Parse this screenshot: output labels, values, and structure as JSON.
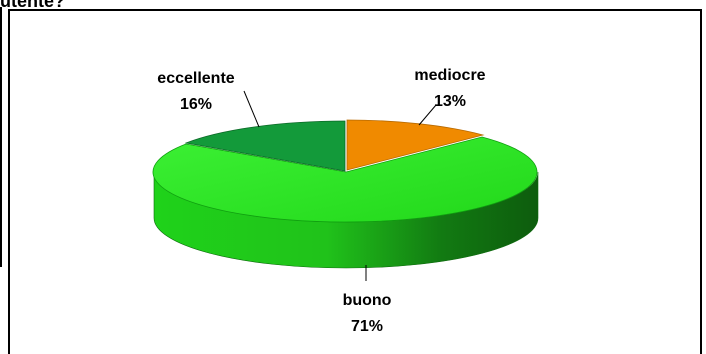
{
  "header": {
    "fragment": "utente?"
  },
  "chart_data": {
    "type": "pie",
    "style": "3d-exploded",
    "slices": [
      {
        "label": "mediocre",
        "value": 13,
        "display": "13%",
        "color": "#f08a00"
      },
      {
        "label": "buono",
        "value": 71,
        "display": "71%",
        "color": "#26e01d"
      },
      {
        "label": "eccellente",
        "value": 16,
        "display": "16%",
        "color": "#139a3a"
      }
    ]
  }
}
